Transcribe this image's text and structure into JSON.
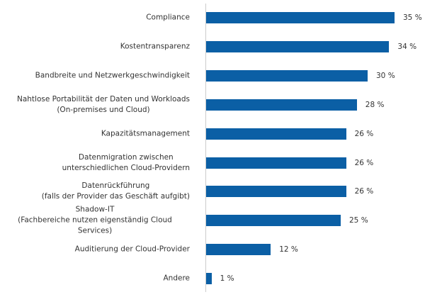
{
  "chart_data": {
    "type": "bar",
    "orientation": "horizontal",
    "categories": [
      "Compliance",
      "Kostentransparenz",
      "Bandbreite und Netzwerkgeschwindigkeit",
      "Nahtlose Portabilität der Daten und Workloads\n(On-premises und Cloud)",
      "Kapazitätsmanagement",
      "Datenmigration zwischen\nunterschiedlichen Cloud-Providern",
      "Datenrückführung\n(falls der Provider das Geschäft aufgibt)",
      "Shadow-IT\n(Fachbereiche nutzen eigenständig Cloud Services)",
      "Auditierung der Cloud-Provider",
      "Andere"
    ],
    "values": [
      35,
      34,
      30,
      28,
      26,
      26,
      26,
      25,
      12,
      1
    ],
    "value_labels": [
      "35 %",
      "34 %",
      "30 %",
      "28 %",
      "26 %",
      "26 %",
      "26 %",
      "25 %",
      "12 %",
      "1 %"
    ],
    "color": "#0b5fa5"
  }
}
